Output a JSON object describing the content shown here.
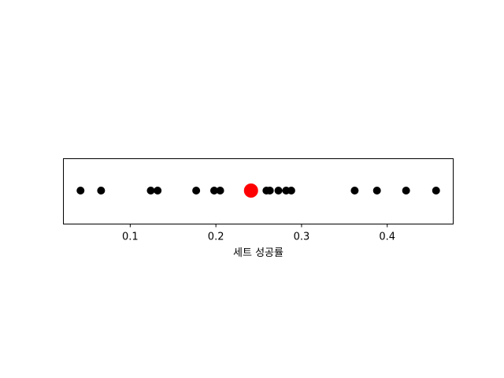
{
  "chart_data": {
    "type": "scatter",
    "title": "",
    "xlabel": "세트 성공률",
    "ylabel": "",
    "xlim": [
      0.022,
      0.477
    ],
    "xticks": [
      0.1,
      0.2,
      0.3,
      0.4
    ],
    "xtick_labels": [
      "0.1",
      "0.2",
      "0.3",
      "0.4"
    ],
    "yticks": [],
    "grid": false,
    "points": {
      "color": "#000000",
      "x": [
        0.042,
        0.066,
        0.124,
        0.132,
        0.177,
        0.198,
        0.205,
        0.259,
        0.263,
        0.273,
        0.282,
        0.288,
        0.362,
        0.388,
        0.422,
        0.457
      ]
    },
    "highlight": {
      "color": "#ff0000",
      "x": [
        0.241
      ]
    }
  }
}
